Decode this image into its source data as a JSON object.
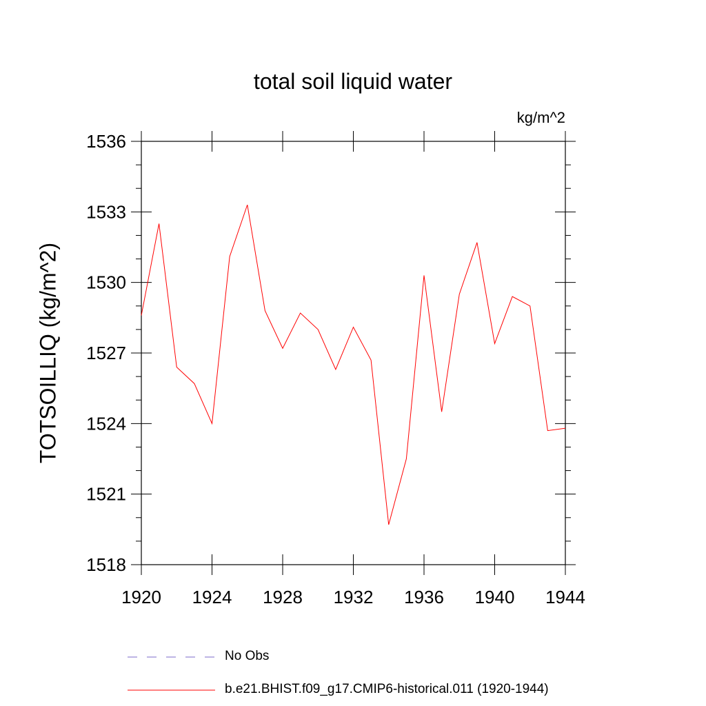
{
  "chart_data": {
    "type": "line",
    "title": "total soil liquid water",
    "units_label": "kg/m^2",
    "ylabel": "TOTSOILLIQ  (kg/m^2)",
    "xlabel": "",
    "xlim": [
      1920,
      1944
    ],
    "ylim": [
      1518,
      1536
    ],
    "x_ticks": [
      1920,
      1924,
      1928,
      1932,
      1936,
      1940,
      1944
    ],
    "y_ticks": [
      1518,
      1521,
      1524,
      1527,
      1530,
      1533,
      1536
    ],
    "grid": false,
    "legend_position": "bottom",
    "x": [
      1920,
      1921,
      1922,
      1923,
      1924,
      1925,
      1926,
      1927,
      1928,
      1929,
      1930,
      1931,
      1932,
      1933,
      1934,
      1935,
      1936,
      1937,
      1938,
      1939,
      1940,
      1941,
      1942,
      1943,
      1944
    ],
    "series": [
      {
        "name": "b.e21.BHIST.f09_g17.CMIP6-historical.011 (1920-1944)",
        "color": "#ff0000",
        "style": "solid",
        "values": [
          1528.6,
          1532.5,
          1526.4,
          1525.7,
          1524.0,
          1531.1,
          1533.3,
          1528.8,
          1527.2,
          1528.7,
          1528.0,
          1526.3,
          1528.1,
          1526.7,
          1519.7,
          1522.5,
          1530.3,
          1524.5,
          1529.5,
          1531.7,
          1527.4,
          1529.4,
          1529.0,
          1523.7,
          1523.8
        ]
      }
    ],
    "legend": [
      {
        "label": "No Obs",
        "color": "#7b68c8",
        "style": "dashed"
      },
      {
        "label": "b.e21.BHIST.f09_g17.CMIP6-historical.011 (1920-1944)",
        "color": "#ff0000",
        "style": "solid"
      }
    ]
  }
}
